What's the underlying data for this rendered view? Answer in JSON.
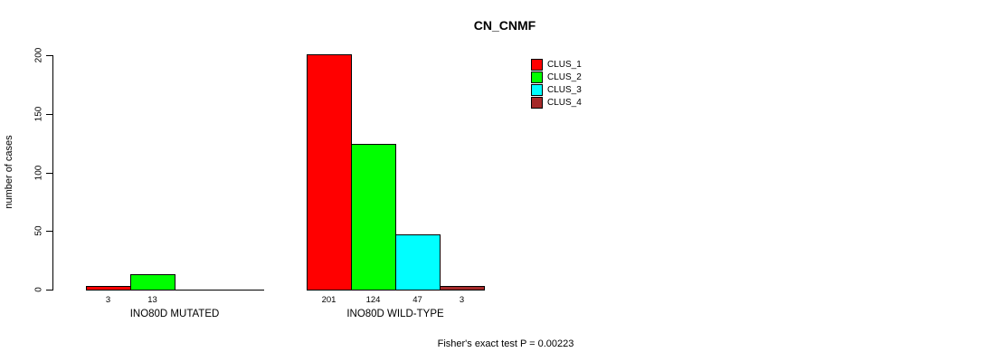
{
  "chart_data": {
    "type": "bar",
    "title": "CN_CNMF",
    "ylabel": "number of cases",
    "xlabel": "",
    "ylim": [
      0,
      200
    ],
    "yticks": [
      0,
      50,
      100,
      150,
      200
    ],
    "grid": false,
    "legend_position": "top-right",
    "background_color": "#FFFFFF",
    "bar_edge_color": "#000000",
    "series": [
      {
        "name": "CLUS_1",
        "color": "#FF0000"
      },
      {
        "name": "CLUS_2",
        "color": "#00FF00"
      },
      {
        "name": "CLUS_3",
        "color": "#00FFFF"
      },
      {
        "name": "CLUS_4",
        "color": "#A52A2A"
      }
    ],
    "groups": [
      {
        "label": "INO80D MUTATED",
        "values": [
          3,
          13,
          0,
          0
        ],
        "bar_labels": [
          "3",
          "13",
          "",
          ""
        ]
      },
      {
        "label": "INO80D WILD-TYPE",
        "values": [
          201,
          124,
          47,
          3
        ],
        "bar_labels": [
          "201",
          "124",
          "47",
          "3"
        ]
      }
    ],
    "footnote": "Fisher's exact test P = 0.00223"
  }
}
